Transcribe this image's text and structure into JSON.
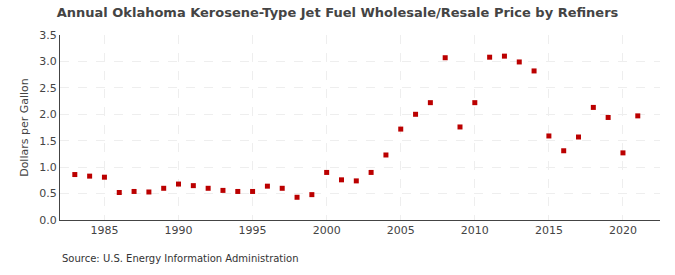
{
  "chart_data": {
    "type": "scatter",
    "title": "Annual Oklahoma Kerosene-Type Jet Fuel Wholesale/Resale Price by Refiners",
    "ylabel": "Dollars per Gallon",
    "annotations": [
      "Source: U.S. Energy Information Administration"
    ],
    "x": [
      1983,
      1984,
      1985,
      1986,
      1987,
      1988,
      1989,
      1990,
      1991,
      1992,
      1993,
      1994,
      1995,
      1996,
      1997,
      1998,
      1999,
      2000,
      2001,
      2002,
      2003,
      2004,
      2005,
      2006,
      2007,
      2008,
      2009,
      2010,
      2011,
      2012,
      2013,
      2014,
      2015,
      2016,
      2017,
      2018,
      2019,
      2020,
      2021
    ],
    "values": [
      0.86,
      0.83,
      0.81,
      0.52,
      0.54,
      0.53,
      0.6,
      0.68,
      0.65,
      0.6,
      0.56,
      0.54,
      0.54,
      0.64,
      0.6,
      0.43,
      0.48,
      0.9,
      0.76,
      0.74,
      0.9,
      1.23,
      1.72,
      2.0,
      2.22,
      3.07,
      1.76,
      2.22,
      3.08,
      3.1,
      2.99,
      2.82,
      1.59,
      1.31,
      1.57,
      2.13,
      1.94,
      1.27,
      1.97
    ],
    "color": "#bb0000",
    "marker": "square",
    "xlim": [
      1982,
      2022.5
    ],
    "ylim": [
      0.0,
      3.5
    ],
    "xticks": [
      1985,
      1990,
      1995,
      2000,
      2005,
      2010,
      2015,
      2020
    ],
    "yticks": [
      {
        "value": 0,
        "label": "0.0"
      },
      0.5,
      {
        "value": 1,
        "label": "1.0"
      },
      1.5,
      {
        "value": 2,
        "label": "2.0"
      },
      2.5,
      {
        "value": 3,
        "label": "3.0"
      },
      3.5
    ],
    "grid": true
  }
}
